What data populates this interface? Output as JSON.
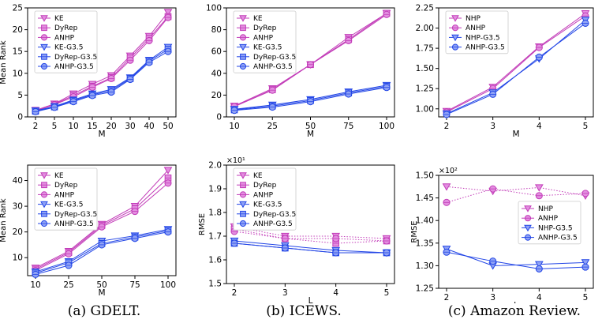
{
  "colors": {
    "magenta": "#c23cb8",
    "blue": "#2346e6",
    "fill_magenta": "#e38ee0",
    "fill_blue": "#8fa2f5"
  },
  "captions": [
    "(a) GDELT.",
    "(b) ICEWS.",
    "(c) Amazon Review."
  ],
  "chart_data": [
    {
      "id": "gdelt-mean-rank",
      "type": "line",
      "xlabel": "M",
      "ylabel": "Mean Rank",
      "categories": [
        "2",
        "5",
        "10",
        "15",
        "20",
        "30",
        "40",
        "50"
      ],
      "ylim": [
        0,
        25
      ],
      "yticks": [
        0,
        5,
        10,
        15,
        20,
        25
      ],
      "legend": "top-left",
      "series": [
        {
          "name": "KE",
          "color": "magenta",
          "marker": "tri-down",
          "values": [
            1.5,
            3.0,
            5.3,
            7.5,
            9.5,
            14.0,
            18.5,
            24.0
          ]
        },
        {
          "name": "DyRep",
          "color": "magenta",
          "marker": "square",
          "values": [
            1.5,
            2.9,
            4.9,
            7.0,
            9.0,
            13.5,
            18.0,
            23.0
          ]
        },
        {
          "name": "ANHP",
          "color": "magenta",
          "marker": "circle",
          "values": [
            1.4,
            2.8,
            4.6,
            6.8,
            8.8,
            13.0,
            17.5,
            22.8
          ]
        },
        {
          "name": "KE-G3.5",
          "color": "blue",
          "marker": "tri-down",
          "values": [
            1.4,
            2.4,
            3.9,
            5.3,
            6.3,
            9.0,
            13.0,
            16.0
          ]
        },
        {
          "name": "DyRep-G3.5",
          "color": "blue",
          "marker": "square",
          "values": [
            1.3,
            2.3,
            3.7,
            5.1,
            6.0,
            8.8,
            12.8,
            15.5
          ]
        },
        {
          "name": "ANHP-G3.5",
          "color": "blue",
          "marker": "circle",
          "values": [
            1.2,
            2.2,
            3.5,
            4.9,
            5.7,
            8.6,
            12.5,
            15.0
          ]
        }
      ]
    },
    {
      "id": "icews-mean-rank",
      "type": "line",
      "xlabel": "M",
      "ylabel": "",
      "categories": [
        "10",
        "25",
        "50",
        "75",
        "100"
      ],
      "ylim": [
        0,
        100
      ],
      "yticks": [
        0,
        20,
        40,
        60,
        80,
        100
      ],
      "legend": "top-left",
      "series": [
        {
          "name": "KE",
          "color": "magenta",
          "marker": "tri-down",
          "values": [
            10,
            26,
            48,
            73,
            95
          ]
        },
        {
          "name": "DyRep",
          "color": "magenta",
          "marker": "square",
          "values": [
            9.5,
            25,
            48,
            71,
            95
          ]
        },
        {
          "name": "ANHP",
          "color": "magenta",
          "marker": "circle",
          "values": [
            9.5,
            24.5,
            48,
            70,
            94
          ]
        },
        {
          "name": "KE-G3.5",
          "color": "blue",
          "marker": "tri-down",
          "values": [
            7,
            11,
            16,
            23,
            29
          ]
        },
        {
          "name": "DyRep-G3.5",
          "color": "blue",
          "marker": "square",
          "values": [
            6.5,
            10,
            15,
            22,
            28
          ]
        },
        {
          "name": "ANHP-G3.5",
          "color": "blue",
          "marker": "circle",
          "values": [
            6,
            9,
            14,
            21,
            27
          ]
        }
      ]
    },
    {
      "id": "amazon-mean-rank",
      "type": "line",
      "xlabel": "M",
      "ylabel": "",
      "categories": [
        "2",
        "3",
        "4",
        "5"
      ],
      "ylim": [
        0.9,
        2.25
      ],
      "yticks": [
        "1.00",
        "1.25",
        "1.50",
        "1.75",
        "2.00",
        "2.25"
      ],
      "ytick_values": [
        1.0,
        1.25,
        1.5,
        1.75,
        2.0,
        2.25
      ],
      "legend": "top-left",
      "series": [
        {
          "name": "NHP",
          "color": "magenta",
          "marker": "tri-down",
          "values": [
            0.97,
            1.27,
            1.77,
            2.18
          ]
        },
        {
          "name": "ANHP",
          "color": "magenta",
          "marker": "circle",
          "values": [
            0.96,
            1.25,
            1.76,
            2.15
          ]
        },
        {
          "name": "NHP-G3.5",
          "color": "blue",
          "marker": "tri-down",
          "values": [
            0.94,
            1.2,
            1.62,
            2.1
          ]
        },
        {
          "name": "ANHP-G3.5",
          "color": "blue",
          "marker": "circle",
          "values": [
            0.93,
            1.18,
            1.64,
            2.06
          ]
        }
      ]
    },
    {
      "id": "gdelt-mean-rank-2",
      "type": "line",
      "xlabel": "M",
      "ylabel": "Mean Rank",
      "categories": [
        "10",
        "25",
        "50",
        "75",
        "100"
      ],
      "ylim": [
        3,
        46
      ],
      "yticks": [
        10,
        20,
        30,
        40
      ],
      "legend": "top-left",
      "series": [
        {
          "name": "KE",
          "color": "magenta",
          "marker": "tri-down",
          "values": [
            6,
            12.5,
            23,
            30,
            44
          ]
        },
        {
          "name": "DyRep",
          "color": "magenta",
          "marker": "square",
          "values": [
            5.5,
            12,
            22.5,
            29,
            41
          ]
        },
        {
          "name": "ANHP",
          "color": "magenta",
          "marker": "circle",
          "values": [
            5,
            11.5,
            22,
            28,
            39
          ]
        },
        {
          "name": "KE-G3.5",
          "color": "blue",
          "marker": "tri-down",
          "values": [
            4.5,
            8.5,
            16.5,
            18.5,
            21
          ]
        },
        {
          "name": "DyRep-G3.5",
          "color": "blue",
          "marker": "square",
          "values": [
            4,
            8,
            15.5,
            18,
            20.5
          ]
        },
        {
          "name": "ANHP-G3.5",
          "color": "blue",
          "marker": "circle",
          "values": [
            3.5,
            7,
            15,
            17.5,
            20
          ]
        }
      ]
    },
    {
      "id": "icews-rmse",
      "type": "line",
      "xlabel": "L",
      "ylabel": "RMSE",
      "multiplier": "×10¹",
      "categories": [
        "2",
        "3",
        "4",
        "5"
      ],
      "ylim": [
        15,
        20
      ],
      "yticks": [
        "1.5",
        "1.6",
        "1.7",
        "1.8",
        "1.9",
        "2.0"
      ],
      "ytick_values": [
        15,
        16,
        17,
        18,
        19,
        20
      ],
      "legend": "top-right",
      "series": [
        {
          "name": "KE",
          "color": "magenta",
          "marker": "tri-down",
          "style": "dotted",
          "values": [
            17.4,
            17.0,
            17.0,
            16.9
          ]
        },
        {
          "name": "DyRep",
          "color": "magenta",
          "marker": "square",
          "style": "dotted",
          "values": [
            17.3,
            16.9,
            16.7,
            16.8
          ]
        },
        {
          "name": "ANHP",
          "color": "magenta",
          "marker": "circle",
          "style": "dotted",
          "values": [
            17.2,
            16.9,
            16.9,
            16.8
          ]
        },
        {
          "name": "KE-G3.5",
          "color": "blue",
          "marker": "tri-down",
          "values": [
            16.8,
            16.6,
            16.4,
            16.3
          ]
        },
        {
          "name": "DyRep-G3.5",
          "color": "blue",
          "marker": "square",
          "values": [
            16.7,
            16.5,
            16.3,
            16.3
          ]
        },
        {
          "name": "ANHP-G3.5",
          "color": "blue",
          "marker": "circle",
          "values": [
            16.7,
            16.5,
            16.3,
            16.3
          ]
        }
      ]
    },
    {
      "id": "amazon-rmse",
      "type": "line",
      "xlabel": "L",
      "ylabel": "RMSE",
      "multiplier": "×10²",
      "categories": [
        "2",
        "3",
        "4",
        "5"
      ],
      "ylim": [
        125,
        150
      ],
      "yticks": [
        "1.25",
        "1.30",
        "1.35",
        "1.40",
        "1.45",
        "1.50"
      ],
      "ytick_values": [
        125,
        130,
        135,
        140,
        145,
        150
      ],
      "legend": "center-right",
      "series": [
        {
          "name": "NHP",
          "color": "magenta",
          "marker": "tri-down",
          "style": "dotted",
          "values": [
            147.5,
            146.5,
            147.3,
            145.5
          ]
        },
        {
          "name": "ANHP",
          "color": "magenta",
          "marker": "circle",
          "style": "dotted",
          "values": [
            144.0,
            147.0,
            145.5,
            146.0
          ]
        },
        {
          "name": "NHP-G3.5",
          "color": "blue",
          "marker": "tri-down",
          "values": [
            133.7,
            130.0,
            130.3,
            130.7
          ]
        },
        {
          "name": "ANHP-G3.5",
          "color": "blue",
          "marker": "circle",
          "values": [
            133.0,
            131.0,
            129.3,
            129.7
          ]
        }
      ]
    }
  ]
}
